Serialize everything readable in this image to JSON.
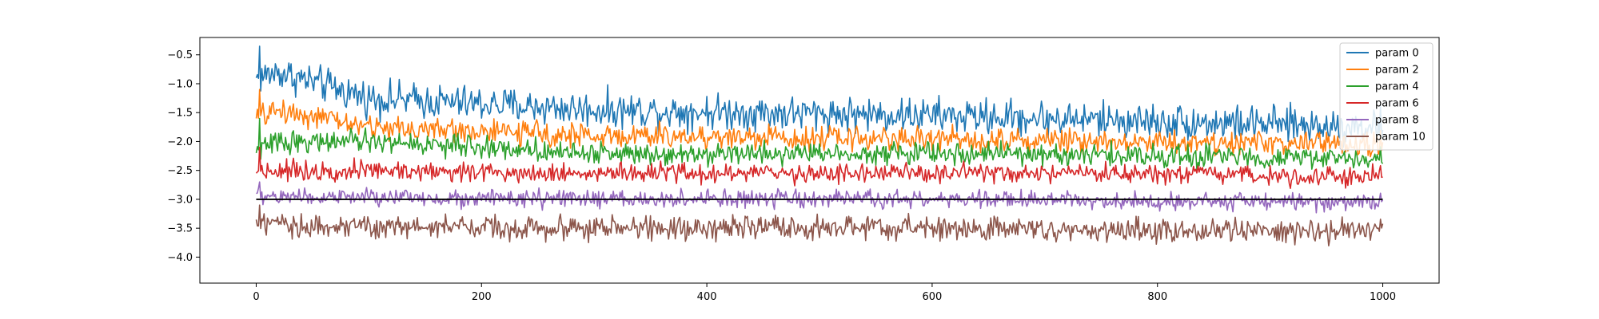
{
  "chart_data": {
    "type": "line",
    "title": "",
    "xlabel": "",
    "ylabel": "",
    "xlim": [
      -50,
      1050
    ],
    "ylim": [
      -4.45,
      -0.2
    ],
    "xticks": [
      0,
      200,
      400,
      600,
      800,
      1000
    ],
    "yticks": [
      -4.0,
      -3.5,
      -3.0,
      -2.5,
      -2.0,
      -1.5,
      -1.0,
      -0.5
    ],
    "xtick_labels": [
      "0",
      "200",
      "400",
      "600",
      "800",
      "1000"
    ],
    "ytick_labels": [
      "−4.0",
      "−3.5",
      "−3.0",
      "−2.5",
      "−2.0",
      "−1.5",
      "−1.0",
      "−0.5"
    ],
    "grid": false,
    "legend_position": "top-right",
    "reference_line": {
      "y": -3.0,
      "color": "#000000",
      "x_range": [
        0,
        1000
      ]
    },
    "series": [
      {
        "name": "param 0",
        "color": "#1f77b4",
        "x_range": [
          0,
          1000
        ],
        "start": -0.9,
        "peak": -0.35,
        "trend": [
          [
            0,
            -0.9
          ],
          [
            20,
            -0.8
          ],
          [
            100,
            -1.25
          ],
          [
            300,
            -1.45
          ],
          [
            600,
            -1.55
          ],
          [
            1000,
            -1.75
          ]
        ],
        "spread": 0.32
      },
      {
        "name": "param 2",
        "color": "#ff7f0e",
        "x_range": [
          0,
          1000
        ],
        "start": -1.6,
        "peak": -1.1,
        "trend": [
          [
            0,
            -1.6
          ],
          [
            20,
            -1.45
          ],
          [
            100,
            -1.75
          ],
          [
            300,
            -1.9
          ],
          [
            600,
            -1.95
          ],
          [
            1000,
            -2.05
          ]
        ],
        "spread": 0.22
      },
      {
        "name": "param 4",
        "color": "#2ca02c",
        "x_range": [
          0,
          1000
        ],
        "start": -2.2,
        "peak": -1.6,
        "trend": [
          [
            0,
            -2.15
          ],
          [
            20,
            -2.0
          ],
          [
            100,
            -2.0
          ],
          [
            300,
            -2.2
          ],
          [
            600,
            -2.2
          ],
          [
            1000,
            -2.3
          ]
        ],
        "spread": 0.2
      },
      {
        "name": "param 6",
        "color": "#d62728",
        "x_range": [
          0,
          1000
        ],
        "start": -2.55,
        "peak": -2.1,
        "trend": [
          [
            0,
            -2.5
          ],
          [
            100,
            -2.5
          ],
          [
            300,
            -2.55
          ],
          [
            600,
            -2.55
          ],
          [
            1000,
            -2.6
          ]
        ],
        "spread": 0.18
      },
      {
        "name": "param 8",
        "color": "#9467bd",
        "x_range": [
          0,
          1000
        ],
        "start": -2.9,
        "peak": -2.7,
        "trend": [
          [
            0,
            -2.95
          ],
          [
            300,
            -3.0
          ],
          [
            600,
            -3.0
          ],
          [
            1000,
            -3.05
          ]
        ],
        "spread": 0.16
      },
      {
        "name": "param 10",
        "color": "#8c564b",
        "x_range": [
          0,
          1000
        ],
        "start": -3.35,
        "peak": -3.1,
        "trend": [
          [
            0,
            -3.45
          ],
          [
            300,
            -3.5
          ],
          [
            600,
            -3.5
          ],
          [
            1000,
            -3.55
          ]
        ],
        "spread": 0.22
      }
    ]
  }
}
